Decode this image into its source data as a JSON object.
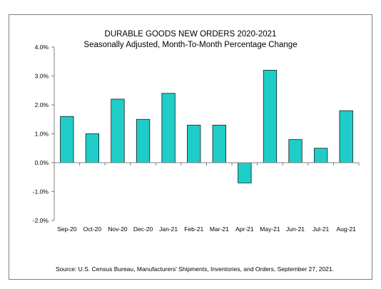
{
  "chart_data": {
    "type": "bar",
    "title": "DURABLE GOODS NEW ORDERS 2020-2021",
    "subtitle": "Seasonally Adjusted,  Month-To-Month Percentage Change",
    "categories": [
      "Sep-20",
      "Oct-20",
      "Nov-20",
      "Dec-20",
      "Jan-21",
      "Feb-21",
      "Mar-21",
      "Apr-21",
      "May-21",
      "Jun-21",
      "Jul-21",
      "Aug-21"
    ],
    "values": [
      1.6,
      1.0,
      2.2,
      1.5,
      2.4,
      1.3,
      1.3,
      -0.7,
      3.2,
      0.8,
      0.5,
      1.8
    ],
    "ylim": [
      -2.0,
      4.0
    ],
    "yticks": [
      -2.0,
      -1.0,
      0.0,
      1.0,
      2.0,
      3.0,
      4.0
    ],
    "ytick_labels": [
      "-2.0%",
      "-1.0%",
      "0.0%",
      "1.0%",
      "2.0%",
      "3.0%",
      "4.0%"
    ],
    "xlabel": "",
    "ylabel": "",
    "grid": false,
    "legend": "none",
    "source": "Source: U.S. Census Bureau, Manufacturers' Shipments, Inventories, and Orders, September 27, 2021.",
    "colors": {
      "bar_fill": "#1fcdc8",
      "bar_stroke": "#1a1a1a",
      "axis": "#7f7f7f"
    }
  }
}
